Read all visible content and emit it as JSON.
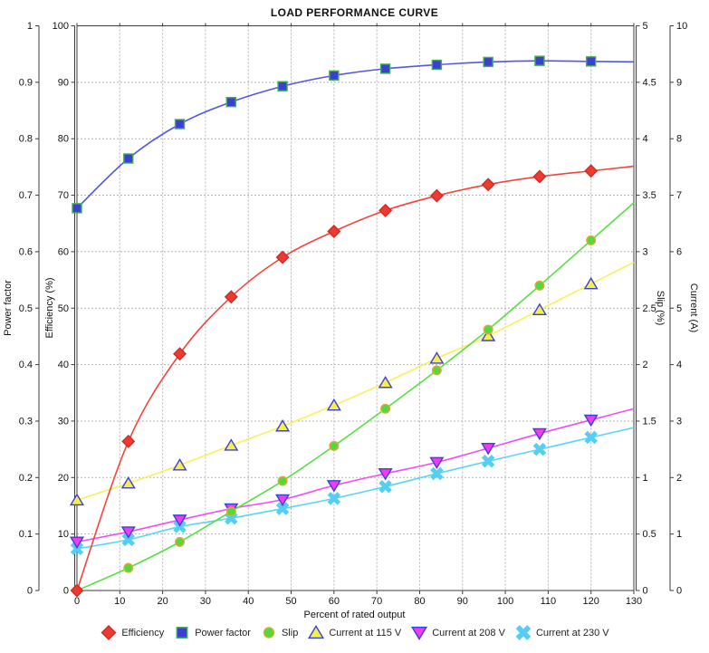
{
  "chart_data": {
    "type": "line",
    "title": "LOAD PERFORMANCE CURVE",
    "xlabel": "Percent of rated output",
    "x_axis": {
      "min": 0,
      "max": 130,
      "step": 10
    },
    "x": [
      0,
      12,
      24,
      36,
      48,
      60,
      72,
      84,
      96,
      108,
      120
    ],
    "grid": true,
    "legend_position": "bottom",
    "axes": [
      {
        "id": "power_factor",
        "label": "Power factor",
        "side": "left-outer",
        "min": 0,
        "max": 1,
        "step": 0.1
      },
      {
        "id": "efficiency",
        "label": "Efficiency (%)",
        "side": "left-inner",
        "min": 0,
        "max": 100,
        "step": 10
      },
      {
        "id": "slip",
        "label": "Slip (%)",
        "side": "right-inner",
        "min": 0,
        "max": 5,
        "step": 0.5
      },
      {
        "id": "current",
        "label": "Current (A)",
        "side": "right-outer",
        "min": 0,
        "max": 10,
        "step": 1
      }
    ],
    "series": [
      {
        "name": "Efficiency",
        "axis": "efficiency",
        "marker": "diamond",
        "line_color": "#f2453c",
        "marker_fill": "#ee3a30",
        "marker_outline": "#cf2d24",
        "values": [
          0,
          26.4,
          41.9,
          52,
          59,
          63.6,
          67.3,
          69.9,
          71.9,
          73.3,
          74.3
        ]
      },
      {
        "name": "Power factor",
        "axis": "power_factor",
        "marker": "square",
        "line_color": "#5257e6",
        "marker_fill": "#3b40d2",
        "marker_outline": "#44ad52",
        "values": [
          0.677,
          0.765,
          0.826,
          0.865,
          0.893,
          0.912,
          0.924,
          0.931,
          0.936,
          0.938,
          0.937
        ]
      },
      {
        "name": "Slip",
        "axis": "slip",
        "marker": "circle",
        "line_color": "#55e043",
        "marker_fill": "#52d93c",
        "marker_outline": "#dfa93a",
        "values": [
          0,
          0.2,
          0.43,
          0.7,
          0.97,
          1.28,
          1.61,
          1.95,
          2.31,
          2.7,
          3.1
        ]
      },
      {
        "name": "Current at 115 V",
        "axis": "current",
        "marker": "triangle-up",
        "line_color": "#f7f255",
        "marker_fill": "#f5ef4e",
        "marker_outline": "#3d41d6",
        "values": [
          1.6,
          1.9,
          2.22,
          2.57,
          2.91,
          3.28,
          3.68,
          4.11,
          4.51,
          4.97,
          5.43
        ]
      },
      {
        "name": "Current at 208 V",
        "axis": "current",
        "marker": "triangle-down",
        "line_color": "#f14ef1",
        "marker_fill": "#ee3cee",
        "marker_outline": "#3d41d6",
        "values": [
          0.86,
          1.04,
          1.25,
          1.45,
          1.61,
          1.86,
          2.07,
          2.27,
          2.52,
          2.78,
          3.02
        ]
      },
      {
        "name": "Current at 230 V",
        "axis": "current",
        "marker": "x",
        "line_color": "#59d5f7",
        "marker_fill": "#55cef3",
        "marker_outline": "#55cef3",
        "values": [
          0.74,
          0.9,
          1.13,
          1.28,
          1.45,
          1.63,
          1.84,
          2.07,
          2.29,
          2.5,
          2.71
        ]
      }
    ]
  }
}
